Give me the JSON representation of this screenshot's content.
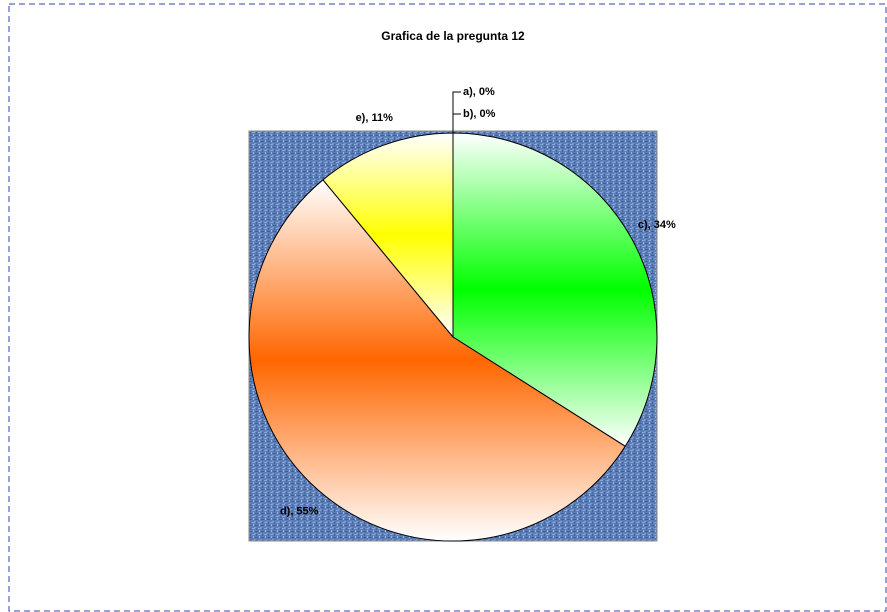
{
  "chart_data": {
    "type": "pie",
    "title": "Grafica de la pregunta 12",
    "categories": [
      "a)",
      "b)",
      "c)",
      "d)",
      "e)"
    ],
    "values": [
      0,
      0,
      34,
      55,
      11
    ],
    "value_labels": [
      "a), 0%",
      "b), 0%",
      "c), 34%",
      "d), 55%",
      "e), 11%"
    ],
    "colors": [
      "#3366ff",
      "#cc3399",
      "#00ff00",
      "#ff6600",
      "#ffff00"
    ]
  }
}
